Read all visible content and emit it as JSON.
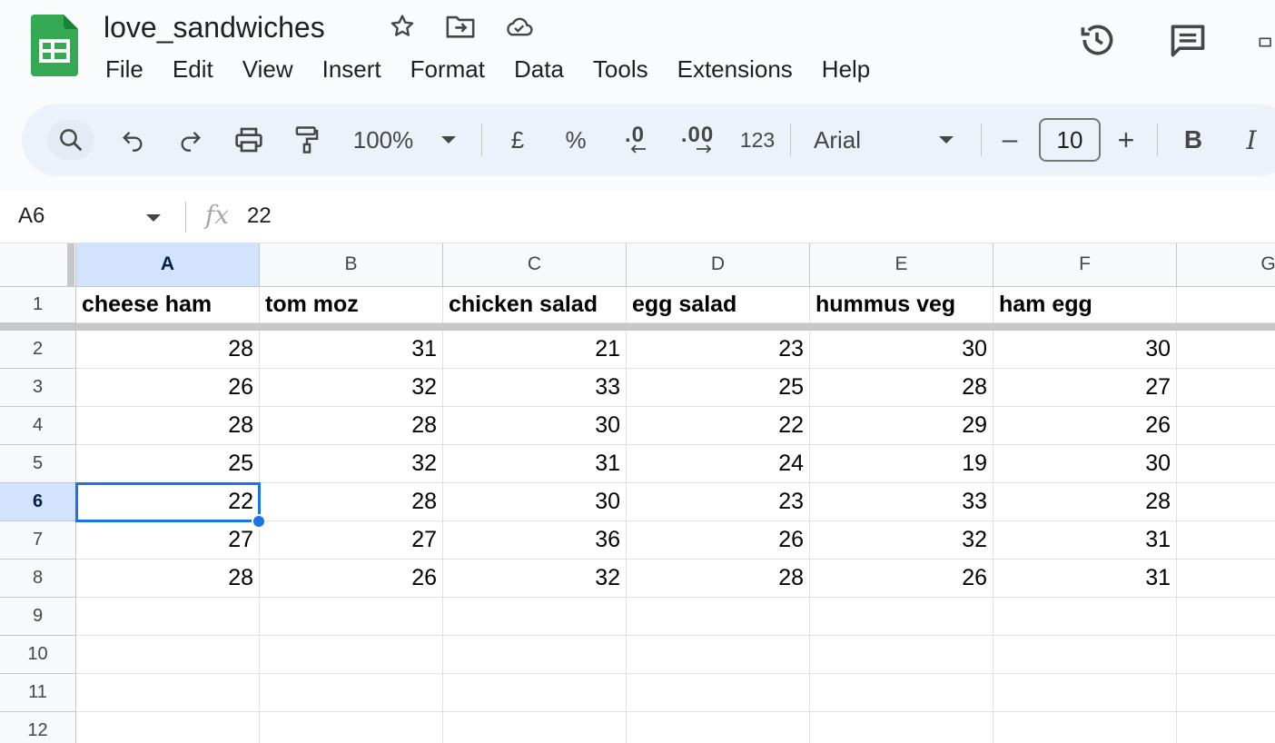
{
  "doc": {
    "title": "love_sandwiches"
  },
  "menu": [
    "File",
    "Edit",
    "View",
    "Insert",
    "Format",
    "Data",
    "Tools",
    "Extensions",
    "Help"
  ],
  "toolbar": {
    "zoom": "100%",
    "currency": "£",
    "percent": "%",
    "decrease_decimal": ".0",
    "increase_decimal": ".00",
    "number_format": "123",
    "font": "Arial",
    "font_size": "10",
    "bold": "B",
    "italic": "I",
    "minus": "–",
    "plus": "+"
  },
  "formula_bar": {
    "cell_ref": "A6",
    "fx": "fx",
    "value": "22"
  },
  "grid": {
    "columns": [
      "A",
      "B",
      "C",
      "D",
      "E",
      "F",
      "G"
    ],
    "rows": [
      "1",
      "2",
      "3",
      "4",
      "5",
      "6",
      "7",
      "8",
      "9",
      "10",
      "11",
      "12"
    ],
    "header_row": [
      "cheese ham",
      "tom moz",
      "chicken salad",
      "egg salad",
      "hummus veg",
      "ham egg"
    ],
    "data": [
      [
        "28",
        "31",
        "21",
        "23",
        "30",
        "30"
      ],
      [
        "26",
        "32",
        "33",
        "25",
        "28",
        "27"
      ],
      [
        "28",
        "28",
        "30",
        "22",
        "29",
        "26"
      ],
      [
        "25",
        "32",
        "31",
        "24",
        "19",
        "30"
      ],
      [
        "22",
        "28",
        "30",
        "23",
        "33",
        "28"
      ],
      [
        "27",
        "27",
        "36",
        "26",
        "32",
        "31"
      ],
      [
        "28",
        "26",
        "32",
        "28",
        "26",
        "31"
      ]
    ],
    "selected_cell": "A6"
  },
  "colors": {
    "accent": "#1a73e8",
    "selected_header": "#d3e3fd",
    "header_bg": "#f9fbfd",
    "toolbar_bg": "#edf2fa"
  },
  "icons": [
    "sheets-logo-icon",
    "star-icon",
    "move-folder-icon",
    "cloud-saved-icon",
    "version-history-icon",
    "comment-icon",
    "search-icon",
    "undo-icon",
    "redo-icon",
    "print-icon",
    "paint-format-icon",
    "chevron-down-icon"
  ]
}
